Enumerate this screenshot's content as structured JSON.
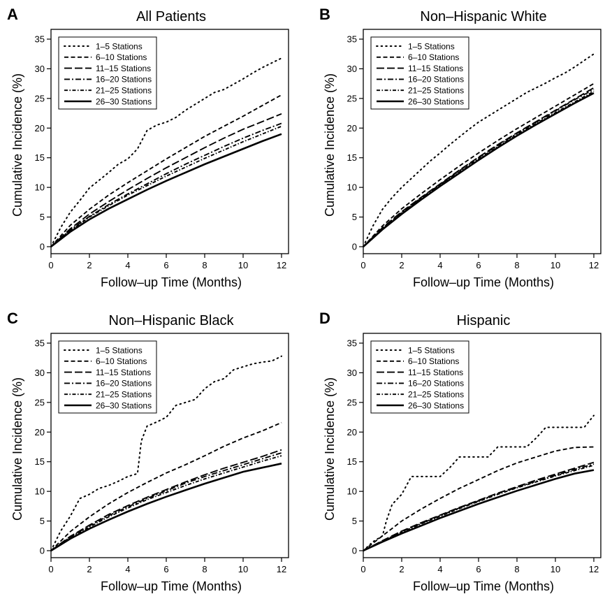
{
  "chart_data": [
    {
      "type": "line",
      "panel": "A",
      "title": "All Patients",
      "xlabel": "Follow–up Time (Months)",
      "ylabel": "Cumulative Incidence (%)",
      "xlim": [
        0,
        12
      ],
      "ylim": [
        0,
        35
      ],
      "xticks": [
        0,
        2,
        4,
        6,
        8,
        10,
        12
      ],
      "yticks": [
        0,
        5,
        10,
        15,
        20,
        25,
        30,
        35
      ],
      "grid": false,
      "legend_position": "top-left",
      "series": [
        {
          "name": "1–5 Stations",
          "style": "dotted",
          "x": [
            0,
            0.5,
            1,
            1.5,
            2,
            2.5,
            3,
            3.5,
            4,
            4.5,
            5,
            5.5,
            6,
            6.5,
            7,
            7.5,
            8,
            8.5,
            9,
            9.5,
            10,
            10.5,
            11,
            11.5,
            12
          ],
          "y": [
            0,
            3.2,
            5.8,
            7.8,
            9.9,
            11.2,
            12.5,
            13.9,
            14.8,
            16.5,
            19.6,
            20.5,
            21,
            21.8,
            23,
            24,
            25,
            26,
            26.5,
            27.4,
            28.3,
            29.3,
            30.2,
            31,
            31.8
          ]
        },
        {
          "name": "6–10 Stations",
          "style": "dashed",
          "x": [
            0,
            1,
            2,
            3,
            4,
            5,
            6,
            7,
            8,
            9,
            10,
            11,
            12
          ],
          "y": [
            0,
            3.6,
            6.3,
            8.7,
            10.8,
            12.8,
            14.8,
            16.7,
            18.6,
            20.3,
            22,
            23.8,
            25.6
          ]
        },
        {
          "name": "11–15 Stations",
          "style": "longdash",
          "x": [
            0,
            1,
            2,
            3,
            4,
            5,
            6,
            7,
            8,
            9,
            10,
            11,
            12
          ],
          "y": [
            0,
            3,
            5.5,
            7.6,
            9.6,
            11.5,
            13.3,
            15,
            16.7,
            18.3,
            19.8,
            21.1,
            22.4
          ]
        },
        {
          "name": "16–20 Stations",
          "style": "dashdot",
          "x": [
            0,
            1,
            2,
            3,
            4,
            5,
            6,
            7,
            8,
            9,
            10,
            11,
            12
          ],
          "y": [
            0,
            2.8,
            5.1,
            7.1,
            8.9,
            10.6,
            12.3,
            13.9,
            15.4,
            16.9,
            18.3,
            19.6,
            20.8
          ]
        },
        {
          "name": "21–25 Stations",
          "style": "dashdotdot",
          "x": [
            0,
            1,
            2,
            3,
            4,
            5,
            6,
            7,
            8,
            9,
            10,
            11,
            12
          ],
          "y": [
            0,
            2.7,
            5,
            6.9,
            8.7,
            10.3,
            11.9,
            13.4,
            14.9,
            16.3,
            17.7,
            19,
            20.3
          ]
        },
        {
          "name": "26–30 Stations",
          "style": "solid",
          "x": [
            0,
            1,
            2,
            3,
            4,
            5,
            6,
            7,
            8,
            9,
            10,
            11,
            12
          ],
          "y": [
            0,
            2.5,
            4.6,
            6.4,
            8,
            9.6,
            11.1,
            12.5,
            13.9,
            15.2,
            16.5,
            17.8,
            19
          ]
        }
      ]
    },
    {
      "type": "line",
      "panel": "B",
      "title": "Non–Hispanic White",
      "xlabel": "Follow–up Time (Months)",
      "ylabel": "Cumulative Incidence (%)",
      "xlim": [
        0,
        12
      ],
      "ylim": [
        0,
        35
      ],
      "xticks": [
        0,
        2,
        4,
        6,
        8,
        10,
        12
      ],
      "yticks": [
        0,
        5,
        10,
        15,
        20,
        25,
        30,
        35
      ],
      "grid": false,
      "legend_position": "top-left",
      "series": [
        {
          "name": "1–5 Stations",
          "style": "dotted",
          "x": [
            0,
            0.5,
            1,
            1.5,
            2,
            2.5,
            3,
            3.5,
            4,
            4.5,
            5,
            5.5,
            6,
            6.5,
            7,
            7.5,
            8,
            8.5,
            9,
            9.5,
            10,
            10.5,
            11,
            11.5,
            12
          ],
          "y": [
            0,
            3.5,
            6.3,
            8.3,
            10,
            11.5,
            13,
            14.5,
            15.8,
            17.2,
            18.5,
            19.8,
            21,
            22,
            23,
            24,
            25,
            26,
            26.8,
            27.6,
            28.5,
            29.3,
            30.3,
            31.4,
            32.5
          ]
        },
        {
          "name": "6–10 Stations",
          "style": "dashed",
          "x": [
            0,
            1,
            2,
            3,
            4,
            5,
            6,
            7,
            8,
            9,
            10,
            11,
            12
          ],
          "y": [
            0,
            3.5,
            6.4,
            8.9,
            11.3,
            13.6,
            15.8,
            17.9,
            19.9,
            21.8,
            23.7,
            25.6,
            27.5
          ]
        },
        {
          "name": "11–15 Stations",
          "style": "longdash",
          "x": [
            0,
            1,
            2,
            3,
            4,
            5,
            6,
            7,
            8,
            9,
            10,
            11,
            12
          ],
          "y": [
            0,
            3.2,
            5.9,
            8.3,
            10.6,
            12.9,
            15.1,
            17.2,
            19.2,
            21.1,
            23,
            24.9,
            26.8
          ]
        },
        {
          "name": "16–20 Stations",
          "style": "dashdot",
          "x": [
            0,
            1,
            2,
            3,
            4,
            5,
            6,
            7,
            8,
            9,
            10,
            11,
            12
          ],
          "y": [
            0,
            3.1,
            5.8,
            8.2,
            10.5,
            12.8,
            15,
            17.1,
            19.1,
            21,
            22.9,
            24.8,
            26.5
          ]
        },
        {
          "name": "21–25 Stations",
          "style": "dashdotdot",
          "x": [
            0,
            1,
            2,
            3,
            4,
            5,
            6,
            7,
            8,
            9,
            10,
            11,
            12
          ],
          "y": [
            0,
            3,
            5.7,
            8.1,
            10.4,
            12.6,
            14.8,
            16.9,
            18.9,
            20.8,
            22.6,
            24.4,
            26.2
          ]
        },
        {
          "name": "26–30 Stations",
          "style": "solid",
          "x": [
            0,
            1,
            2,
            3,
            4,
            5,
            6,
            7,
            8,
            9,
            10,
            11,
            12
          ],
          "y": [
            0,
            2.9,
            5.5,
            7.9,
            10.2,
            12.4,
            14.6,
            16.7,
            18.7,
            20.6,
            22.4,
            24.2,
            25.9
          ]
        }
      ]
    },
    {
      "type": "line",
      "panel": "C",
      "title": "Non–Hispanic Black",
      "xlabel": "Follow–up Time (Months)",
      "ylabel": "Cumulative Incidence (%)",
      "xlim": [
        0,
        12
      ],
      "ylim": [
        0,
        35
      ],
      "xticks": [
        0,
        2,
        4,
        6,
        8,
        10,
        12
      ],
      "yticks": [
        0,
        5,
        10,
        15,
        20,
        25,
        30,
        35
      ],
      "grid": false,
      "legend_position": "top-left",
      "series": [
        {
          "name": "1–5 Stations",
          "style": "dotted",
          "x": [
            0,
            0.5,
            1,
            1.5,
            2,
            2.5,
            3,
            3.5,
            4,
            4.5,
            4.7,
            5,
            5.5,
            6,
            6.5,
            7,
            7.5,
            8,
            8.5,
            9,
            9.5,
            10,
            10.5,
            11,
            11.5,
            12
          ],
          "y": [
            0,
            3.3,
            5.8,
            8.8,
            9.5,
            10.5,
            11,
            11.7,
            12.5,
            13,
            18.5,
            21,
            21.7,
            22.5,
            24.5,
            25,
            25.5,
            27.3,
            28.5,
            29,
            30.5,
            31,
            31.5,
            31.8,
            32,
            32.8
          ]
        },
        {
          "name": "6–10 Stations",
          "style": "dashed",
          "x": [
            0,
            1,
            2,
            3,
            4,
            5,
            6,
            7,
            8,
            9,
            10,
            11,
            12
          ],
          "y": [
            0,
            3.2,
            5.7,
            7.9,
            9.8,
            11.5,
            13.1,
            14.5,
            16,
            17.6,
            19,
            20.2,
            21.6
          ]
        },
        {
          "name": "11–15 Stations",
          "style": "longdash",
          "x": [
            0,
            1,
            2,
            3,
            4,
            5,
            6,
            7,
            8,
            9,
            10,
            11,
            12
          ],
          "y": [
            0,
            2.4,
            4.3,
            6.1,
            7.6,
            9,
            10.3,
            11.6,
            12.8,
            13.9,
            14.9,
            15.9,
            17
          ]
        },
        {
          "name": "16–20 Stations",
          "style": "dashdot",
          "x": [
            0,
            1,
            2,
            3,
            4,
            5,
            6,
            7,
            8,
            9,
            10,
            11,
            12
          ],
          "y": [
            0,
            2.3,
            4.2,
            5.9,
            7.4,
            8.8,
            10.1,
            11.4,
            12.5,
            13.5,
            14.5,
            15.5,
            16.5
          ]
        },
        {
          "name": "21–25 Stations",
          "style": "dashdotdot",
          "x": [
            0,
            1,
            2,
            3,
            4,
            5,
            6,
            7,
            8,
            9,
            10,
            11,
            12
          ],
          "y": [
            0,
            2.2,
            4,
            5.7,
            7.2,
            8.6,
            9.8,
            11,
            12.1,
            13.1,
            14.1,
            15.1,
            16
          ]
        },
        {
          "name": "26–30 Stations",
          "style": "solid",
          "x": [
            0,
            1,
            2,
            3,
            4,
            5,
            6,
            7,
            8,
            9,
            10,
            11,
            12
          ],
          "y": [
            0,
            2,
            3.7,
            5.2,
            6.6,
            7.9,
            9.1,
            10.2,
            11.3,
            12.3,
            13.3,
            14,
            14.7
          ]
        }
      ]
    },
    {
      "type": "line",
      "panel": "D",
      "title": "Hispanic",
      "xlabel": "Follow–up Time (Months)",
      "ylabel": "Cumulative Incidence (%)",
      "xlim": [
        0,
        12
      ],
      "ylim": [
        0,
        35
      ],
      "xticks": [
        0,
        2,
        4,
        6,
        8,
        10,
        12
      ],
      "yticks": [
        0,
        5,
        10,
        15,
        20,
        25,
        30,
        35
      ],
      "grid": false,
      "legend_position": "top-left",
      "series": [
        {
          "name": "1–5 Stations",
          "style": "dotted",
          "x": [
            0,
            0.5,
            1,
            1.2,
            1.5,
            2,
            2.5,
            3,
            3.5,
            4,
            4.5,
            5,
            5.5,
            6,
            6.5,
            7,
            7.5,
            8,
            8.5,
            9,
            9.5,
            10,
            10.5,
            11,
            11.5,
            12
          ],
          "y": [
            0,
            1.5,
            2.5,
            5,
            7.8,
            9.5,
            12.5,
            12.5,
            12.5,
            12.5,
            14,
            15.8,
            15.8,
            15.8,
            15.8,
            17.5,
            17.5,
            17.5,
            17.5,
            19,
            20.8,
            20.8,
            20.8,
            20.8,
            20.8,
            22.8
          ]
        },
        {
          "name": "6–10 Stations",
          "style": "dashed",
          "x": [
            0,
            1,
            2,
            3,
            4,
            5,
            6,
            7,
            8,
            9,
            10,
            11,
            12
          ],
          "y": [
            0,
            2.5,
            5,
            7,
            8.8,
            10.5,
            12,
            13.5,
            14.8,
            15.8,
            16.8,
            17.4,
            17.5
          ]
        },
        {
          "name": "11–15 Stations",
          "style": "longdash",
          "x": [
            0,
            1,
            2,
            3,
            4,
            5,
            6,
            7,
            8,
            9,
            10,
            11,
            12
          ],
          "y": [
            0,
            1.7,
            3.3,
            4.7,
            6,
            7.3,
            8.5,
            9.7,
            10.8,
            11.9,
            12.9,
            13.9,
            14.9
          ]
        },
        {
          "name": "16–20 Stations",
          "style": "dashdot",
          "x": [
            0,
            1,
            2,
            3,
            4,
            5,
            6,
            7,
            8,
            9,
            10,
            11,
            12
          ],
          "y": [
            0,
            1.6,
            3.2,
            4.6,
            5.9,
            7.2,
            8.4,
            9.6,
            10.7,
            11.7,
            12.7,
            13.7,
            14.6
          ]
        },
        {
          "name": "21–25 Stations",
          "style": "dashdotdot",
          "x": [
            0,
            1,
            2,
            3,
            4,
            5,
            6,
            7,
            8,
            9,
            10,
            11,
            12
          ],
          "y": [
            0,
            1.6,
            3.1,
            4.5,
            5.8,
            7.1,
            8.3,
            9.5,
            10.6,
            11.6,
            12.6,
            13.5,
            14.4
          ]
        },
        {
          "name": "26–30 Stations",
          "style": "solid",
          "x": [
            0,
            1,
            2,
            3,
            4,
            5,
            6,
            7,
            8,
            9,
            10,
            11,
            12
          ],
          "y": [
            0,
            1.5,
            2.9,
            4.2,
            5.5,
            6.7,
            7.9,
            9,
            10.1,
            11.1,
            12.1,
            13,
            13.6
          ]
        }
      ]
    }
  ],
  "colors": {
    "line": "#000000",
    "background": "#ffffff"
  }
}
